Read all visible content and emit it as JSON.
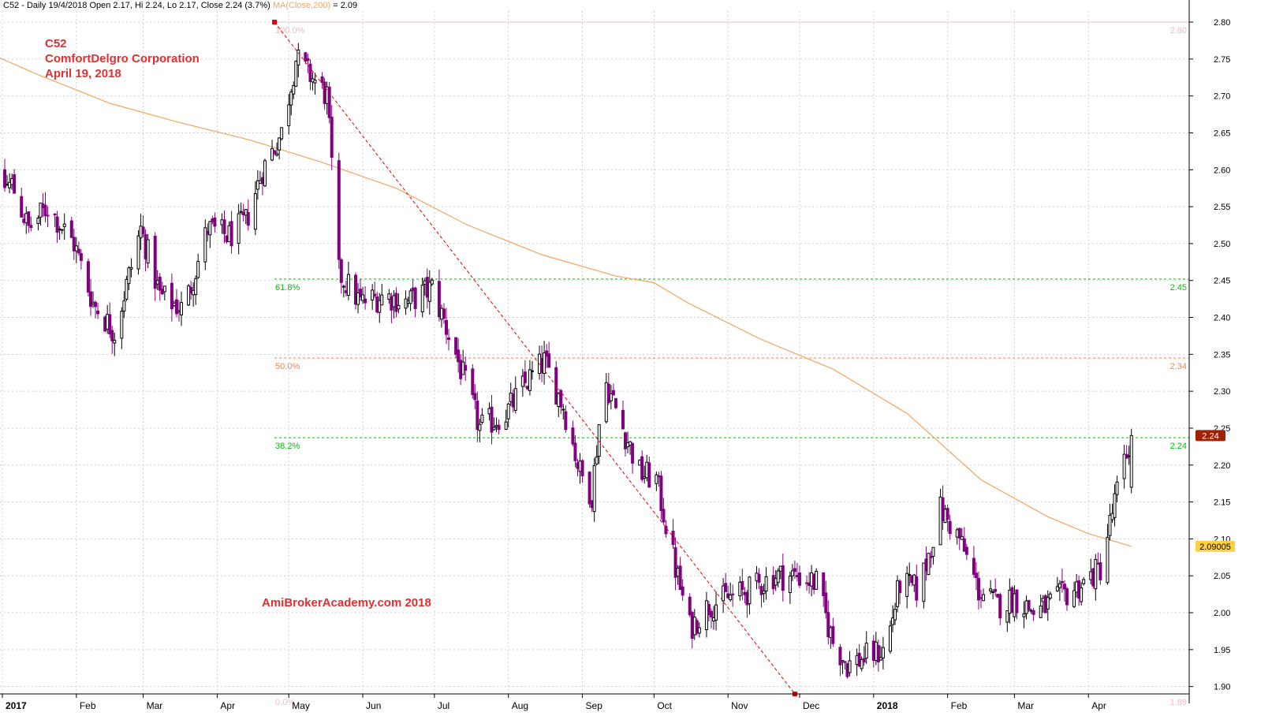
{
  "header": {
    "prefix": "C52 - Daily 19/4/2018 Open 2.17, Hi 2.24, Lo 2.17, Close 2.24 (3.7%)",
    "ma_label": "MA(Close,200)",
    "ma_value": " = 2.09"
  },
  "annotations": {
    "symbol": "C52",
    "company": "ComfortDelgro Corporation",
    "date": "April 19, 2018",
    "watermark": "AmiBrokerAcademy.com  2018"
  },
  "colors": {
    "background": "#ffffff",
    "grid": "#cfcfcf",
    "candle_up": "#000000",
    "candle_down": "#800080",
    "ma": "#f4a460",
    "fib_green": "#00c000",
    "fib_orange": "#ff7f3f",
    "fib_pink": "#f4b8c0",
    "trend": "#e00000",
    "annotation": "#e03030",
    "price_badge": "#a02000",
    "ma_badge": "#ffd040"
  },
  "chart_data": {
    "type": "candlestick",
    "symbol": "C52",
    "ylim": [
      1.89,
      2.815
    ],
    "y_ticks": [
      "1.90",
      "1.95",
      "2.00",
      "2.05",
      "2.10",
      "2.15",
      "2.20",
      "2.25",
      "2.30",
      "2.35",
      "2.40",
      "2.45",
      "2.50",
      "2.55",
      "2.60",
      "2.65",
      "2.70",
      "2.75",
      "2.80"
    ],
    "x_start": "2017-01-01",
    "x_end": "2018-04-30",
    "months": [
      {
        "date": "2017-01-01",
        "label": "2017",
        "major": true
      },
      {
        "date": "2017-02-01",
        "label": "Feb"
      },
      {
        "date": "2017-03-01",
        "label": "Mar"
      },
      {
        "date": "2017-04-01",
        "label": "Apr"
      },
      {
        "date": "2017-05-01",
        "label": "May"
      },
      {
        "date": "2017-06-01",
        "label": "Jun"
      },
      {
        "date": "2017-07-01",
        "label": "Jul"
      },
      {
        "date": "2017-08-01",
        "label": "Aug"
      },
      {
        "date": "2017-09-01",
        "label": "Sep"
      },
      {
        "date": "2017-10-01",
        "label": "Oct"
      },
      {
        "date": "2017-11-01",
        "label": "Nov"
      },
      {
        "date": "2017-12-01",
        "label": "Dec"
      },
      {
        "date": "2018-01-01",
        "label": "2018",
        "major": true
      },
      {
        "date": "2018-02-01",
        "label": "Feb"
      },
      {
        "date": "2018-03-01",
        "label": "Mar"
      },
      {
        "date": "2018-04-01",
        "label": "Apr"
      }
    ],
    "close_path": [
      [
        "2016-12-18",
        2.57
      ],
      [
        "2017-01-05",
        2.58
      ],
      [
        "2017-01-12",
        2.52
      ],
      [
        "2017-01-20",
        2.55
      ],
      [
        "2017-01-31",
        2.5
      ],
      [
        "2017-02-08",
        2.42
      ],
      [
        "2017-02-17",
        2.38
      ],
      [
        "2017-02-28",
        2.52
      ],
      [
        "2017-03-08",
        2.43
      ],
      [
        "2017-03-18",
        2.41
      ],
      [
        "2017-03-28",
        2.52
      ],
      [
        "2017-04-06",
        2.51
      ],
      [
        "2017-04-13",
        2.53
      ],
      [
        "2017-04-20",
        2.6
      ],
      [
        "2017-04-28",
        2.65
      ],
      [
        "2017-05-04",
        2.75
      ],
      [
        "2017-05-12",
        2.72
      ],
      [
        "2017-05-17",
        2.7
      ],
      [
        "2017-05-22",
        2.46
      ],
      [
        "2017-05-31",
        2.42
      ],
      [
        "2017-06-10",
        2.43
      ],
      [
        "2017-06-20",
        2.42
      ],
      [
        "2017-06-30",
        2.44
      ],
      [
        "2017-07-10",
        2.35
      ],
      [
        "2017-07-20",
        2.25
      ],
      [
        "2017-07-31",
        2.27
      ],
      [
        "2017-08-08",
        2.31
      ],
      [
        "2017-08-16",
        2.34
      ],
      [
        "2017-08-24",
        2.28
      ],
      [
        "2017-08-31",
        2.19
      ],
      [
        "2017-09-05",
        2.16
      ],
      [
        "2017-09-10",
        2.32
      ],
      [
        "2017-09-18",
        2.25
      ],
      [
        "2017-09-25",
        2.19
      ],
      [
        "2017-10-02",
        2.18
      ],
      [
        "2017-10-10",
        2.06
      ],
      [
        "2017-10-16",
        1.98
      ],
      [
        "2017-10-24",
        2.01
      ],
      [
        "2017-11-01",
        2.02
      ],
      [
        "2017-11-10",
        2.03
      ],
      [
        "2017-11-20",
        2.05
      ],
      [
        "2017-11-30",
        2.05
      ],
      [
        "2017-12-08",
        2.04
      ],
      [
        "2017-12-15",
        1.96
      ],
      [
        "2017-12-21",
        1.93
      ],
      [
        "2017-12-29",
        1.94
      ],
      [
        "2018-01-06",
        1.95
      ],
      [
        "2018-01-12",
        2.04
      ],
      [
        "2018-01-20",
        2.03
      ],
      [
        "2018-01-29",
        2.14
      ],
      [
        "2018-02-06",
        2.1
      ],
      [
        "2018-02-14",
        2.03
      ],
      [
        "2018-02-22",
        2.01
      ],
      [
        "2018-03-01",
        2.02
      ],
      [
        "2018-03-10",
        2.0
      ],
      [
        "2018-03-20",
        2.02
      ],
      [
        "2018-03-30",
        2.04
      ],
      [
        "2018-04-06",
        2.06
      ],
      [
        "2018-04-12",
        2.15
      ],
      [
        "2018-04-19",
        2.24
      ]
    ],
    "ma200_path": [
      [
        "2016-12-18",
        2.77
      ],
      [
        "2017-01-15",
        2.73
      ],
      [
        "2017-02-15",
        2.69
      ],
      [
        "2017-03-15",
        2.665
      ],
      [
        "2017-04-15",
        2.64
      ],
      [
        "2017-05-15",
        2.61
      ],
      [
        "2017-06-15",
        2.575
      ],
      [
        "2017-07-15",
        2.525
      ],
      [
        "2017-08-15",
        2.485
      ],
      [
        "2017-09-15",
        2.456
      ],
      [
        "2017-10-01",
        2.447
      ],
      [
        "2017-10-15",
        2.42
      ],
      [
        "2017-11-15",
        2.37
      ],
      [
        "2017-12-15",
        2.33
      ],
      [
        "2018-01-15",
        2.27
      ],
      [
        "2018-02-15",
        2.18
      ],
      [
        "2018-03-15",
        2.13
      ],
      [
        "2018-04-01",
        2.107
      ],
      [
        "2018-04-19",
        2.09
      ]
    ],
    "last_close": 2.24,
    "ma200_last": 2.09,
    "fibonacci": {
      "trend_start": {
        "date": "2017-04-25",
        "price": 2.8
      },
      "trend_end": {
        "date": "2017-11-29",
        "price": 1.89
      },
      "levels": [
        {
          "pct": "100.0%",
          "price": 2.8,
          "right": "2.80",
          "kind": "pink"
        },
        {
          "pct": "61.8%",
          "price": 2.452,
          "right": "2.45",
          "kind": "green"
        },
        {
          "pct": "50.0%",
          "price": 2.345,
          "right": "2.34",
          "kind": "orange"
        },
        {
          "pct": "38.2%",
          "price": 2.237,
          "right": "2.24",
          "kind": "green"
        },
        {
          "pct": "0.0%",
          "price": 1.89,
          "right": "1.89",
          "kind": "pink"
        }
      ]
    },
    "price_badges": {
      "close": "2.24",
      "ma": "2.09005"
    }
  }
}
